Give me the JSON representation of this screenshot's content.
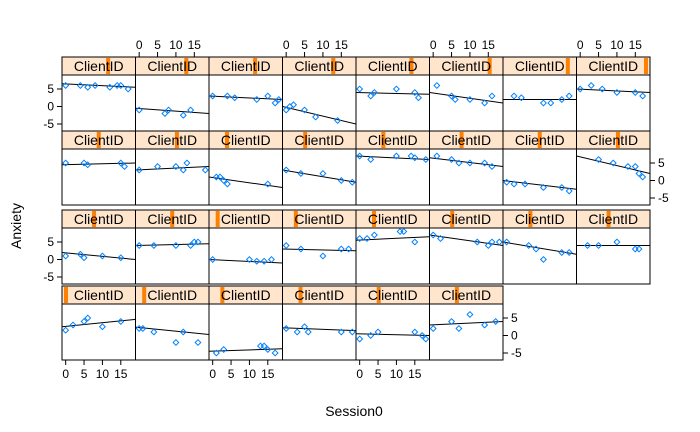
{
  "chart_data": {
    "type": "scatter",
    "chart_style": "lattice-trellis",
    "xlabel": "Session0",
    "ylabel": "Anxiety",
    "x_ticks": [
      0,
      5,
      10,
      15
    ],
    "y_ticks": [
      -5,
      0,
      5
    ],
    "xlim": [
      -1,
      19
    ],
    "ylim": [
      -7,
      9
    ],
    "strip_text": "ClientID",
    "colors": {
      "strip_bg": "#ffe5cc",
      "strip_marker": "#ff7f00",
      "points": "#0080ff",
      "fit_line": "#000000",
      "panel_border": "#000000"
    },
    "panels": [
      {
        "row": 4,
        "col": 1,
        "x": [
          0,
          2,
          5,
          6,
          10,
          15
        ],
        "y": [
          1.5,
          3,
          4,
          5,
          2.5,
          4
        ],
        "fit": [
          2.5,
          4.6
        ]
      },
      {
        "row": 4,
        "col": 2,
        "x": [
          0,
          1,
          4,
          10,
          12,
          16
        ],
        "y": [
          2,
          2,
          1,
          -2,
          1,
          -2
        ],
        "fit": [
          2.4,
          0.3
        ]
      },
      {
        "row": 4,
        "col": 3,
        "x": [
          1,
          3,
          13,
          14,
          15,
          17
        ],
        "y": [
          -5,
          -4,
          -3,
          -3,
          -4,
          -5
        ],
        "fit": [
          -4.5,
          -3.8
        ]
      },
      {
        "row": 4,
        "col": 4,
        "x": [
          0,
          3,
          5,
          6,
          15,
          18
        ],
        "y": [
          2,
          1,
          2.5,
          1,
          1,
          1
        ],
        "fit": [
          2.2,
          1.4
        ]
      },
      {
        "row": 4,
        "col": 5,
        "x": [
          0,
          3,
          5,
          15,
          17,
          18
        ],
        "y": [
          -1,
          0,
          1,
          1,
          0,
          -1
        ],
        "fit": [
          0.5,
          0
        ]
      },
      {
        "row": 4,
        "col": 6,
        "x": [
          0,
          5,
          7,
          10,
          14,
          17
        ],
        "y": [
          2,
          4,
          2,
          6,
          3,
          4
        ],
        "fit": [
          3,
          4
        ]
      },
      {
        "row": 3,
        "col": 1,
        "x": [
          0,
          4,
          5,
          10,
          15
        ],
        "y": [
          1,
          1.5,
          0.5,
          1,
          0.5
        ],
        "fit": [
          2,
          0
        ]
      },
      {
        "row": 3,
        "col": 2,
        "x": [
          0,
          4,
          10,
          14,
          15,
          16
        ],
        "y": [
          4,
          4,
          4,
          4,
          5,
          5
        ],
        "fit": [
          4,
          4.5
        ]
      },
      {
        "row": 3,
        "col": 3,
        "x": [
          0,
          10,
          12,
          14,
          16
        ],
        "y": [
          0,
          0,
          -0.5,
          -0.5,
          0
        ],
        "fit": [
          0,
          -1
        ]
      },
      {
        "row": 3,
        "col": 4,
        "x": [
          0,
          4,
          10,
          15,
          17
        ],
        "y": [
          4,
          3,
          1,
          3,
          3
        ],
        "fit": [
          3,
          2.5
        ]
      },
      {
        "row": 3,
        "col": 5,
        "x": [
          0,
          2,
          4,
          11,
          12,
          15
        ],
        "y": [
          6,
          6,
          7,
          8,
          8,
          5
        ],
        "fit": [
          5.5,
          6.5
        ]
      },
      {
        "row": 3,
        "col": 6,
        "x": [
          0,
          2,
          12,
          15,
          16,
          18
        ],
        "y": [
          7,
          6,
          5,
          4,
          5,
          5
        ],
        "fit": [
          7,
          4
        ]
      },
      {
        "row": 3,
        "col": 7,
        "x": [
          0,
          6,
          8,
          10,
          15,
          17
        ],
        "y": [
          5,
          4,
          3,
          0,
          2,
          2
        ],
        "fit": [
          5,
          1.5
        ]
      },
      {
        "row": 3,
        "col": 8,
        "x": [
          2,
          5,
          10,
          15,
          16
        ],
        "y": [
          4,
          4,
          5,
          3,
          3
        ],
        "fit": [
          4,
          4
        ]
      },
      {
        "row": 2,
        "col": 1,
        "x": [
          0,
          5,
          6,
          15,
          16
        ],
        "y": [
          5,
          5,
          4.5,
          5,
          4
        ],
        "fit": [
          4.5,
          5
        ]
      },
      {
        "row": 2,
        "col": 2,
        "x": [
          0,
          5,
          10,
          12,
          13,
          18
        ],
        "y": [
          3,
          4,
          4,
          3,
          5,
          3
        ],
        "fit": [
          3,
          4
        ]
      },
      {
        "row": 2,
        "col": 3,
        "x": [
          1,
          2,
          3,
          4,
          15
        ],
        "y": [
          1,
          1,
          0,
          -1,
          -1
        ],
        "fit": [
          1,
          -2
        ]
      },
      {
        "row": 2,
        "col": 4,
        "x": [
          0,
          4,
          10,
          15,
          18
        ],
        "y": [
          3,
          2,
          2,
          0,
          -0.5
        ],
        "fit": [
          3,
          -0.5
        ]
      },
      {
        "row": 2,
        "col": 5,
        "x": [
          0,
          3,
          10,
          14,
          15,
          18
        ],
        "y": [
          7,
          6,
          7,
          7,
          6.5,
          6
        ],
        "fit": [
          7,
          6
        ]
      },
      {
        "row": 2,
        "col": 6,
        "x": [
          1,
          5,
          7,
          10,
          14,
          16
        ],
        "y": [
          7,
          6,
          5,
          5,
          5,
          4
        ],
        "fit": [
          6.5,
          4
        ]
      },
      {
        "row": 2,
        "col": 7,
        "x": [
          0,
          2,
          5,
          10,
          15,
          17
        ],
        "y": [
          -0.5,
          -1,
          -1,
          -2,
          -2,
          -3
        ],
        "fit": [
          0,
          -2.5
        ]
      },
      {
        "row": 2,
        "col": 8,
        "x": [
          5,
          9,
          13,
          15,
          16,
          17
        ],
        "y": [
          6,
          5,
          4,
          4,
          2,
          1
        ],
        "fit": [
          7,
          2
        ]
      },
      {
        "row": 1,
        "col": 1,
        "x": [
          0,
          4,
          6,
          8,
          12,
          14,
          15,
          17
        ],
        "y": [
          6,
          6,
          5.5,
          6,
          5.5,
          6,
          6,
          5
        ],
        "fit": [
          6.5,
          5.5
        ]
      },
      {
        "row": 1,
        "col": 2,
        "x": [
          0,
          7,
          8,
          12,
          14
        ],
        "y": [
          -1,
          -2,
          -1,
          -2.5,
          -1
        ],
        "fit": [
          -0.5,
          -2
        ]
      },
      {
        "row": 1,
        "col": 3,
        "x": [
          0,
          4,
          6,
          12,
          15,
          17,
          18
        ],
        "y": [
          3,
          3,
          2.5,
          2,
          3,
          1,
          2
        ],
        "fit": [
          3,
          2
        ]
      },
      {
        "row": 1,
        "col": 4,
        "x": [
          0,
          1,
          2,
          5,
          8,
          14
        ],
        "y": [
          -1,
          0,
          0.5,
          -1,
          -3,
          -4
        ],
        "fit": [
          0,
          -5
        ]
      },
      {
        "row": 1,
        "col": 5,
        "x": [
          0,
          3,
          4,
          10,
          15,
          16
        ],
        "y": [
          5,
          3,
          4,
          5,
          4,
          2.5
        ],
        "fit": [
          4,
          3.5
        ]
      },
      {
        "row": 1,
        "col": 6,
        "x": [
          1,
          5,
          6,
          10,
          14,
          16
        ],
        "y": [
          6,
          3,
          2,
          2,
          1,
          3
        ],
        "fit": [
          4,
          1
        ]
      },
      {
        "row": 1,
        "col": 7,
        "x": [
          2,
          4,
          10,
          12,
          15,
          17
        ],
        "y": [
          3,
          2.5,
          1,
          1,
          2,
          3
        ],
        "fit": [
          2,
          2
        ]
      },
      {
        "row": 1,
        "col": 8,
        "x": [
          0,
          3,
          6,
          10,
          15,
          17
        ],
        "y": [
          5,
          6,
          5,
          4,
          4,
          3
        ],
        "fit": [
          5,
          4
        ]
      }
    ]
  }
}
